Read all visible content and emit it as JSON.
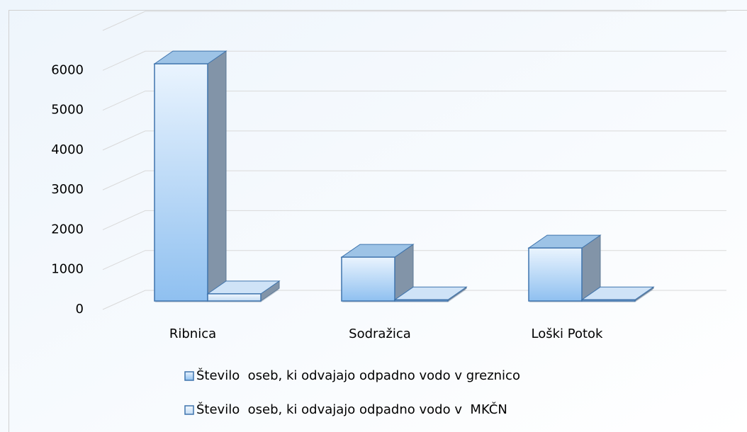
{
  "chart_data": {
    "type": "bar3d",
    "categories": [
      "Ribnica",
      "Sodražica",
      "Loški Potok"
    ],
    "series": [
      {
        "name": "Število  oseb, ki odvajajo odpadno vodo v greznico",
        "color": "#9dc3e6",
        "values": [
          5950,
          1100,
          1330
        ]
      },
      {
        "name": "Število  oseb, ki odvajajo odpadno vodo v  MKČN",
        "color": "#cfe3f7",
        "values": [
          180,
          30,
          30
        ]
      }
    ],
    "ylim": [
      0,
      7000
    ],
    "yticks": [
      0,
      1000,
      2000,
      3000,
      4000,
      5000,
      6000
    ],
    "grid": true,
    "legend": "bottom"
  }
}
